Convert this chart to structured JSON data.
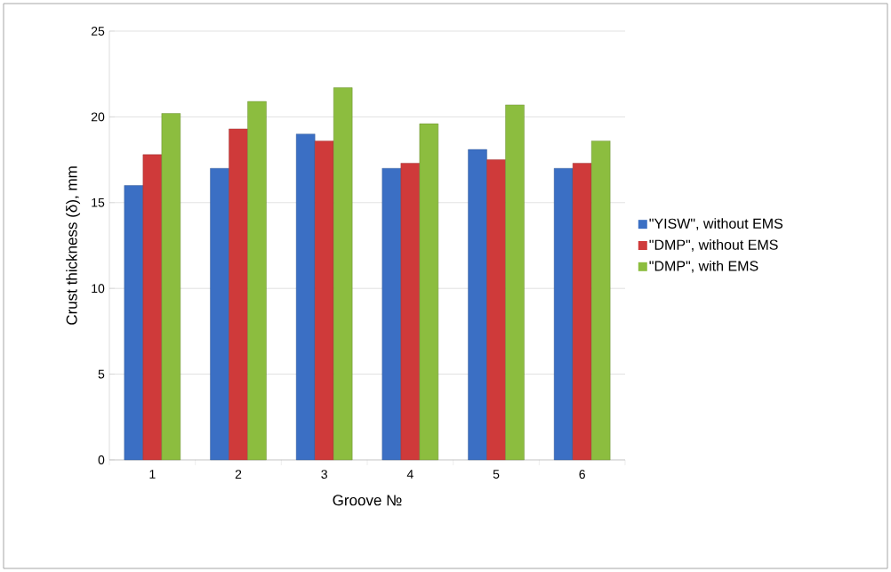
{
  "chart_data": {
    "type": "bar",
    "xlabel": "Groove №",
    "ylabel": "Crust thickness (δ), mm",
    "categories": [
      "1",
      "2",
      "3",
      "4",
      "5",
      "6"
    ],
    "series": [
      {
        "name": "\"YISW\", without EMS",
        "color": "#3b6fc4",
        "values": [
          16.0,
          17.0,
          19.0,
          17.0,
          18.1,
          17.0
        ]
      },
      {
        "name": "\"DMP\", without EMS",
        "color": "#cf3a3a",
        "values": [
          17.8,
          19.3,
          18.6,
          17.3,
          17.5,
          17.3
        ]
      },
      {
        "name": "\"DMP\", with EMS",
        "color": "#8cbd3f",
        "values": [
          20.2,
          20.9,
          21.7,
          19.6,
          20.7,
          18.6
        ]
      }
    ],
    "ylim": [
      0,
      25
    ],
    "yticks": [
      0,
      5,
      10,
      15,
      20,
      25
    ],
    "grid": "y",
    "legend": "right"
  }
}
